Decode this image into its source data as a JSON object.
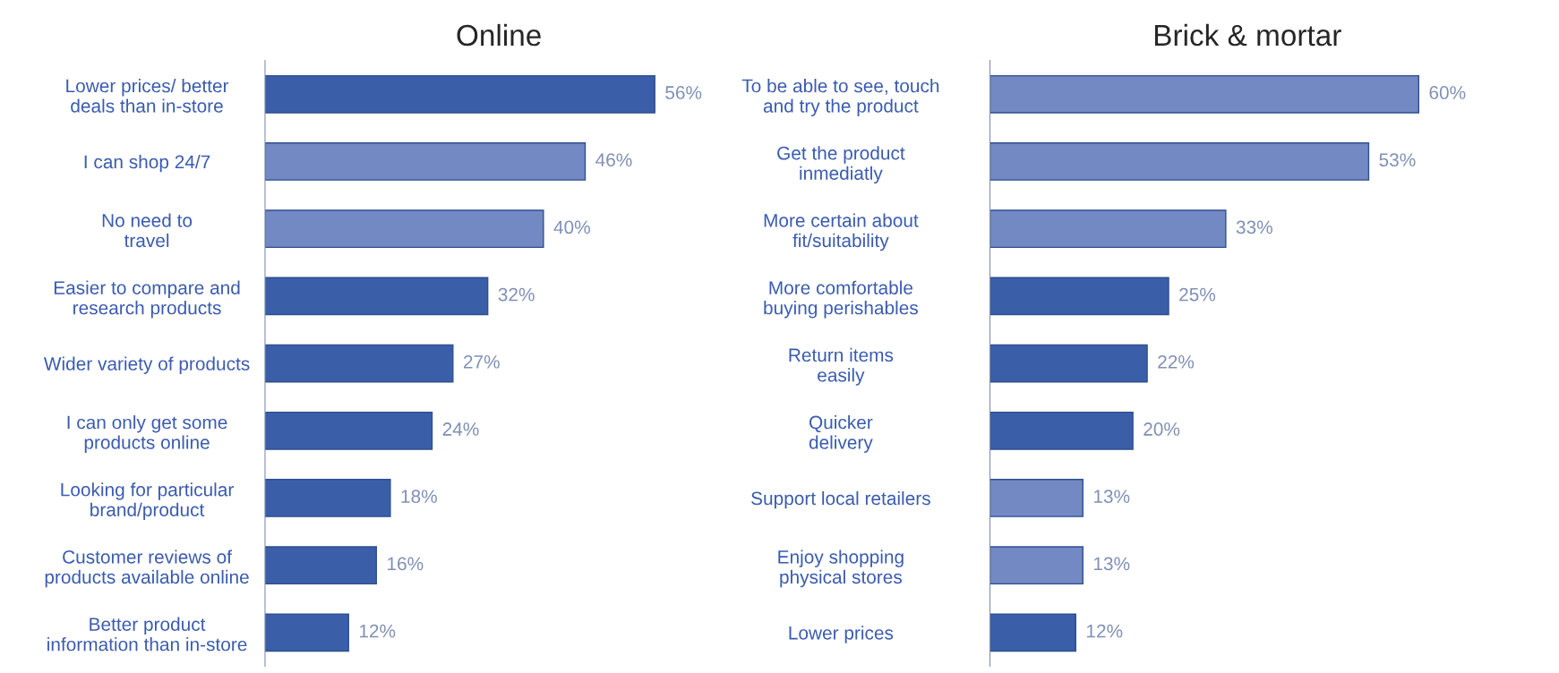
{
  "chart_data": [
    {
      "type": "bar",
      "orientation": "horizontal",
      "title": "Online",
      "value_labels": [
        "56%",
        "46%",
        "40%",
        "32%",
        "27%",
        "24%",
        "18%",
        "16%",
        "12%"
      ],
      "tick_labels": "y",
      "grid": false,
      "legend": false,
      "categories": [
        "Lower prices/ better\ndeals than in-store",
        "I can shop 24/7",
        "No need to\ntravel",
        "Easier to compare and\nresearch products",
        "Wider variety of products",
        "I can only get some\nproducts online",
        "Looking for particular\nbrand/product",
        "Customer reviews of\nproducts available online",
        "Better product\ninformation than in-store"
      ],
      "values": [
        56,
        46,
        40,
        32,
        27,
        24,
        18,
        16,
        12
      ],
      "colors": [
        "#3a5fa8",
        "#7389c4",
        "#7389c4",
        "#3a5fa8",
        "#3a5fa8",
        "#3a5fa8",
        "#3a5fa8",
        "#3a5fa8",
        "#3a5fa8"
      ]
    },
    {
      "type": "bar",
      "orientation": "horizontal",
      "title": "Brick & mortar",
      "value_labels": [
        "60%",
        "53%",
        "33%",
        "25%",
        "22%",
        "20%",
        "13%",
        "13%",
        "12%"
      ],
      "tick_labels": "y",
      "grid": false,
      "legend": false,
      "categories": [
        "To be able to see, touch\nand try the product",
        "Get the product\ninmediatly",
        "More certain about\nfit/suitability",
        "More comfortable\nbuying perishables",
        "Return items\neasily",
        "Quicker\ndelivery",
        "Support local retailers",
        "Enjoy shopping\nphysical stores",
        "Lower prices"
      ],
      "values": [
        60,
        53,
        33,
        25,
        22,
        20,
        13,
        13,
        12
      ],
      "colors": [
        "#7389c4",
        "#7389c4",
        "#7389c4",
        "#3a5fa8",
        "#3a5fa8",
        "#3a5fa8",
        "#7389c4",
        "#7389c4",
        "#3a5fa8"
      ]
    }
  ]
}
